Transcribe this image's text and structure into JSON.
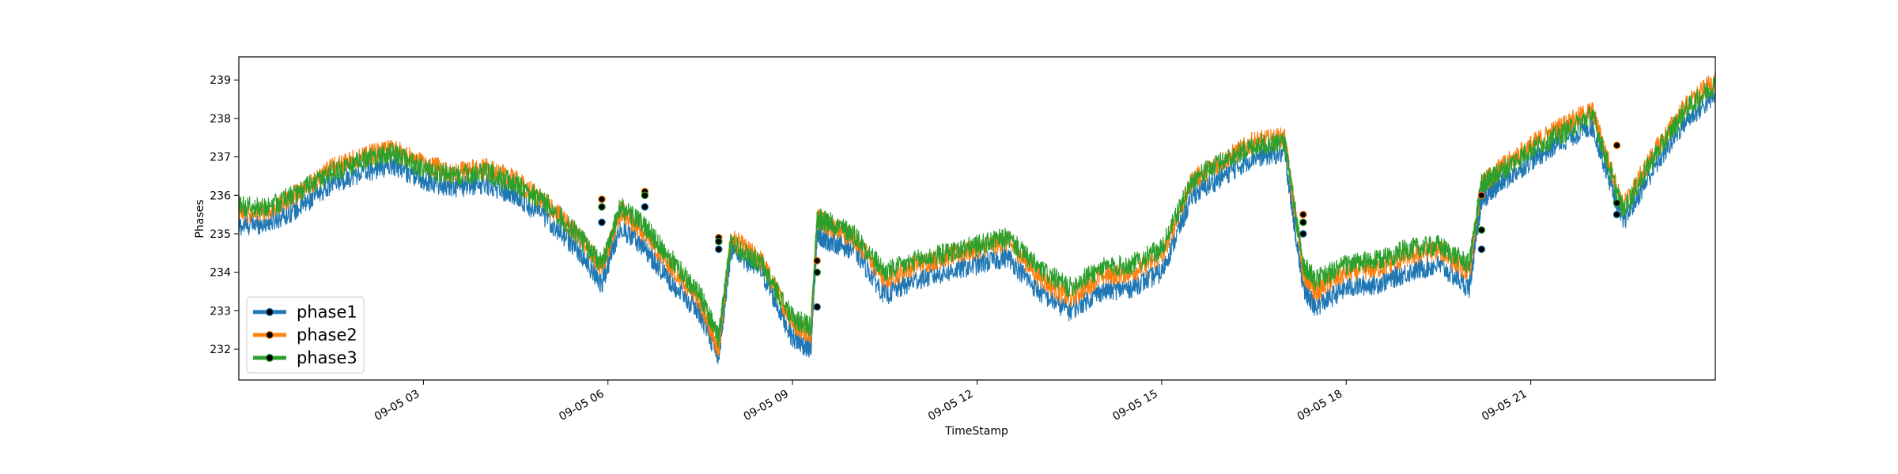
{
  "chart_data": {
    "type": "line",
    "xlabel": "TimeStamp",
    "ylabel": "Phases",
    "xlim": [
      "2021-09-05 00:00",
      "2021-09-06 00:00"
    ],
    "ylim": [
      231.2,
      239.6
    ],
    "x_ticks": [
      {
        "x": "09-05 03",
        "label": "09-05 03"
      },
      {
        "x": "09-05 06",
        "label": "09-05 06"
      },
      {
        "x": "09-05 09",
        "label": "09-05 09"
      },
      {
        "x": "09-05 12",
        "label": "09-05 12"
      },
      {
        "x": "09-05 15",
        "label": "09-05 15"
      },
      {
        "x": "09-05 18",
        "label": "09-05 18"
      },
      {
        "x": "09-05 21",
        "label": "09-05 21"
      }
    ],
    "y_ticks": [
      232,
      233,
      234,
      235,
      236,
      237,
      238,
      239
    ],
    "grid": false,
    "legend_position": "lower-left",
    "x_hours": [
      0,
      0.5,
      1,
      1.5,
      2,
      2.5,
      3,
      3.5,
      4,
      4.5,
      5,
      5.5,
      5.9,
      6.2,
      6.6,
      7,
      7.5,
      7.8,
      8,
      8.5,
      9,
      9.3,
      9.4,
      9.6,
      10,
      10.5,
      11,
      11.5,
      12,
      12.5,
      13,
      13.5,
      14,
      14.5,
      15,
      15.5,
      16,
      16.5,
      17,
      17.3,
      17.5,
      18,
      18.5,
      19,
      19.5,
      20,
      20.2,
      20.5,
      21,
      21.5,
      22,
      22.5,
      23,
      23.5,
      24
    ],
    "series": [
      {
        "name": "phase1",
        "color": "#1f77b4",
        "values": [
          235.2,
          235.3,
          235.7,
          236.3,
          236.6,
          236.8,
          236.4,
          236.2,
          236.3,
          236.0,
          235.4,
          234.6,
          233.7,
          235.2,
          234.6,
          233.8,
          232.9,
          231.8,
          234.6,
          234.0,
          232.3,
          232.0,
          235.0,
          234.8,
          234.6,
          233.4,
          233.8,
          234.0,
          234.2,
          234.4,
          233.5,
          233.0,
          233.5,
          233.6,
          234.0,
          236.0,
          236.5,
          237.0,
          237.1,
          233.6,
          233.1,
          233.6,
          233.7,
          234.0,
          234.2,
          233.6,
          235.9,
          236.3,
          236.9,
          237.4,
          237.8,
          235.3,
          236.7,
          237.9,
          238.6
        ]
      },
      {
        "name": "phase2",
        "color": "#ff7f0e",
        "values": [
          235.5,
          235.6,
          236.1,
          236.7,
          237.0,
          237.2,
          236.8,
          236.6,
          236.7,
          236.4,
          235.8,
          235.0,
          234.1,
          235.6,
          235.0,
          234.2,
          233.2,
          232.0,
          234.9,
          234.3,
          232.7,
          232.4,
          235.4,
          235.2,
          234.9,
          233.8,
          234.2,
          234.4,
          234.6,
          234.8,
          233.9,
          233.3,
          233.9,
          234.0,
          234.4,
          236.4,
          236.9,
          237.4,
          237.5,
          234.0,
          233.5,
          234.0,
          234.1,
          234.4,
          234.6,
          234.0,
          236.3,
          236.7,
          237.3,
          237.8,
          238.2,
          235.7,
          237.1,
          238.3,
          239.0
        ]
      },
      {
        "name": "phase3",
        "color": "#2ca02c",
        "values": [
          235.7,
          235.7,
          236.1,
          236.6,
          236.9,
          237.1,
          236.7,
          236.5,
          236.6,
          236.3,
          235.8,
          235.0,
          234.2,
          235.7,
          235.2,
          234.4,
          233.4,
          232.3,
          234.8,
          234.2,
          232.8,
          232.6,
          235.4,
          235.3,
          235.0,
          234.0,
          234.3,
          234.5,
          234.7,
          234.9,
          234.1,
          233.6,
          234.1,
          234.2,
          234.6,
          236.4,
          236.9,
          237.3,
          237.4,
          234.2,
          233.8,
          234.2,
          234.3,
          234.6,
          234.7,
          234.2,
          236.3,
          236.6,
          237.2,
          237.6,
          238.1,
          235.6,
          237.0,
          238.2,
          238.9
        ]
      }
    ],
    "marker_events": [
      {
        "x_hour": 5.9,
        "phase1": 235.3,
        "phase2": 235.9,
        "phase3": 235.7
      },
      {
        "x_hour": 6.6,
        "phase1": 235.7,
        "phase2": 236.1,
        "phase3": 236.0
      },
      {
        "x_hour": 7.8,
        "phase1": 234.6,
        "phase2": 234.9,
        "phase3": 234.8
      },
      {
        "x_hour": 9.4,
        "phase1": 233.1,
        "phase2": 234.3,
        "phase3": 234.0
      },
      {
        "x_hour": 17.3,
        "phase1": 235.0,
        "phase2": 235.5,
        "phase3": 235.3
      },
      {
        "x_hour": 20.2,
        "phase1": 234.6,
        "phase2": 236.0,
        "phase3": 235.1
      },
      {
        "x_hour": 22.4,
        "phase1": 235.5,
        "phase2": 237.3,
        "phase3": 235.8
      }
    ]
  }
}
